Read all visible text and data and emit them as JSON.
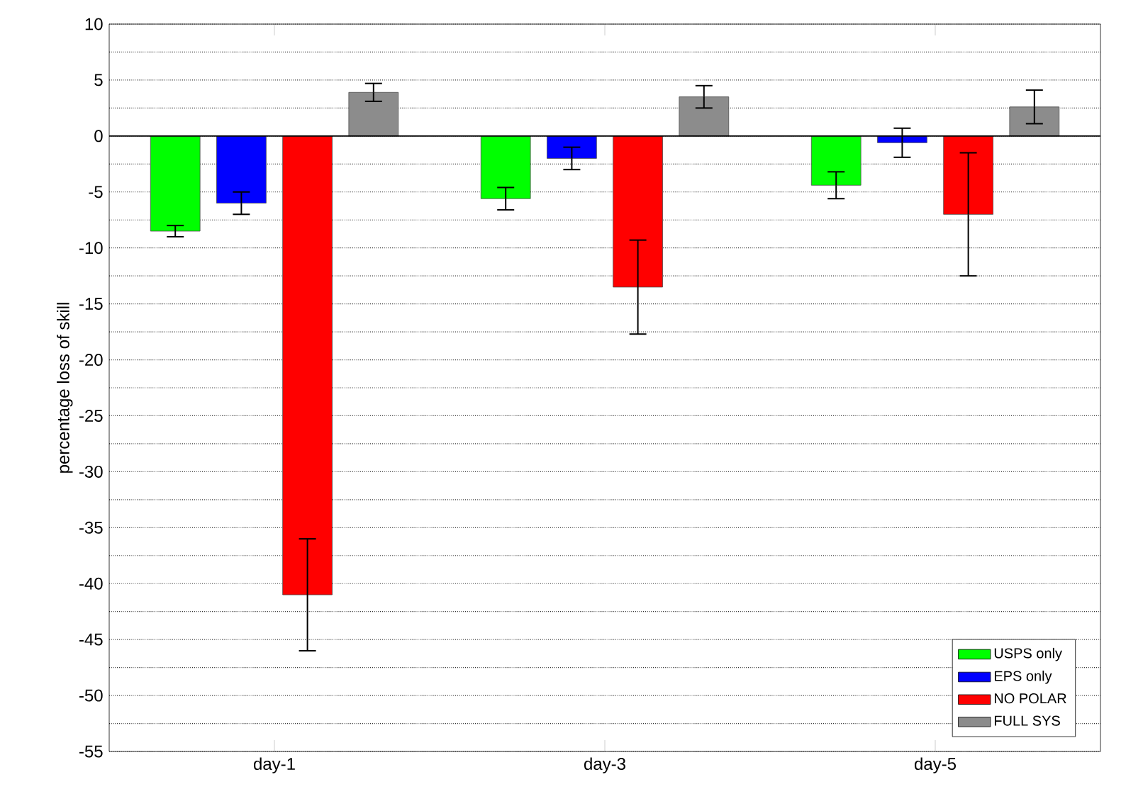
{
  "chart_data": {
    "type": "bar",
    "ylabel": "percentage loss of skill",
    "categories": [
      "day-1",
      "day-3",
      "day-5"
    ],
    "series": [
      {
        "name": "USPS only",
        "color": "#00ff00",
        "values": [
          -8.5,
          -5.6,
          -4.4
        ],
        "errors": [
          0.5,
          1.0,
          1.2
        ]
      },
      {
        "name": "EPS only",
        "color": "#0000ff",
        "values": [
          -6.0,
          -2.0,
          -0.6
        ],
        "errors": [
          1.0,
          1.0,
          1.3
        ]
      },
      {
        "name": "NO POLAR",
        "color": "#ff0000",
        "values": [
          -41.0,
          -13.5,
          -7.0
        ],
        "errors": [
          5.0,
          4.2,
          5.5
        ]
      },
      {
        "name": "FULL SYS",
        "color": "#8c8c8c",
        "values": [
          3.9,
          3.5,
          2.6
        ],
        "errors": [
          0.8,
          1.0,
          1.5
        ]
      }
    ],
    "ylim": [
      -55,
      10
    ],
    "yticks": [
      10,
      {
        "value": 7.5,
        "label": null
      },
      5,
      {
        "value": 2.5,
        "label": null
      },
      0,
      {
        "value": -2.5,
        "label": null
      },
      -5,
      {
        "value": -7.5,
        "label": null
      },
      -10,
      {
        "value": -12.5,
        "label": null
      },
      -15,
      {
        "value": -17.5,
        "label": null
      },
      -20,
      {
        "value": -22.5,
        "label": null
      },
      -25,
      {
        "value": -27.5,
        "label": null
      },
      -30,
      {
        "value": -32.5,
        "label": null
      },
      -35,
      {
        "value": -37.5,
        "label": null
      },
      -40,
      {
        "value": -42.5,
        "label": null
      },
      -45,
      {
        "value": -47.5,
        "label": null
      },
      -50,
      {
        "value": -52.5,
        "label": null
      },
      -55
    ],
    "ref_lines": [
      {
        "axis": "y",
        "value": 0,
        "color": "#000000"
      }
    ],
    "grid": "y",
    "legend": "bottom right"
  }
}
